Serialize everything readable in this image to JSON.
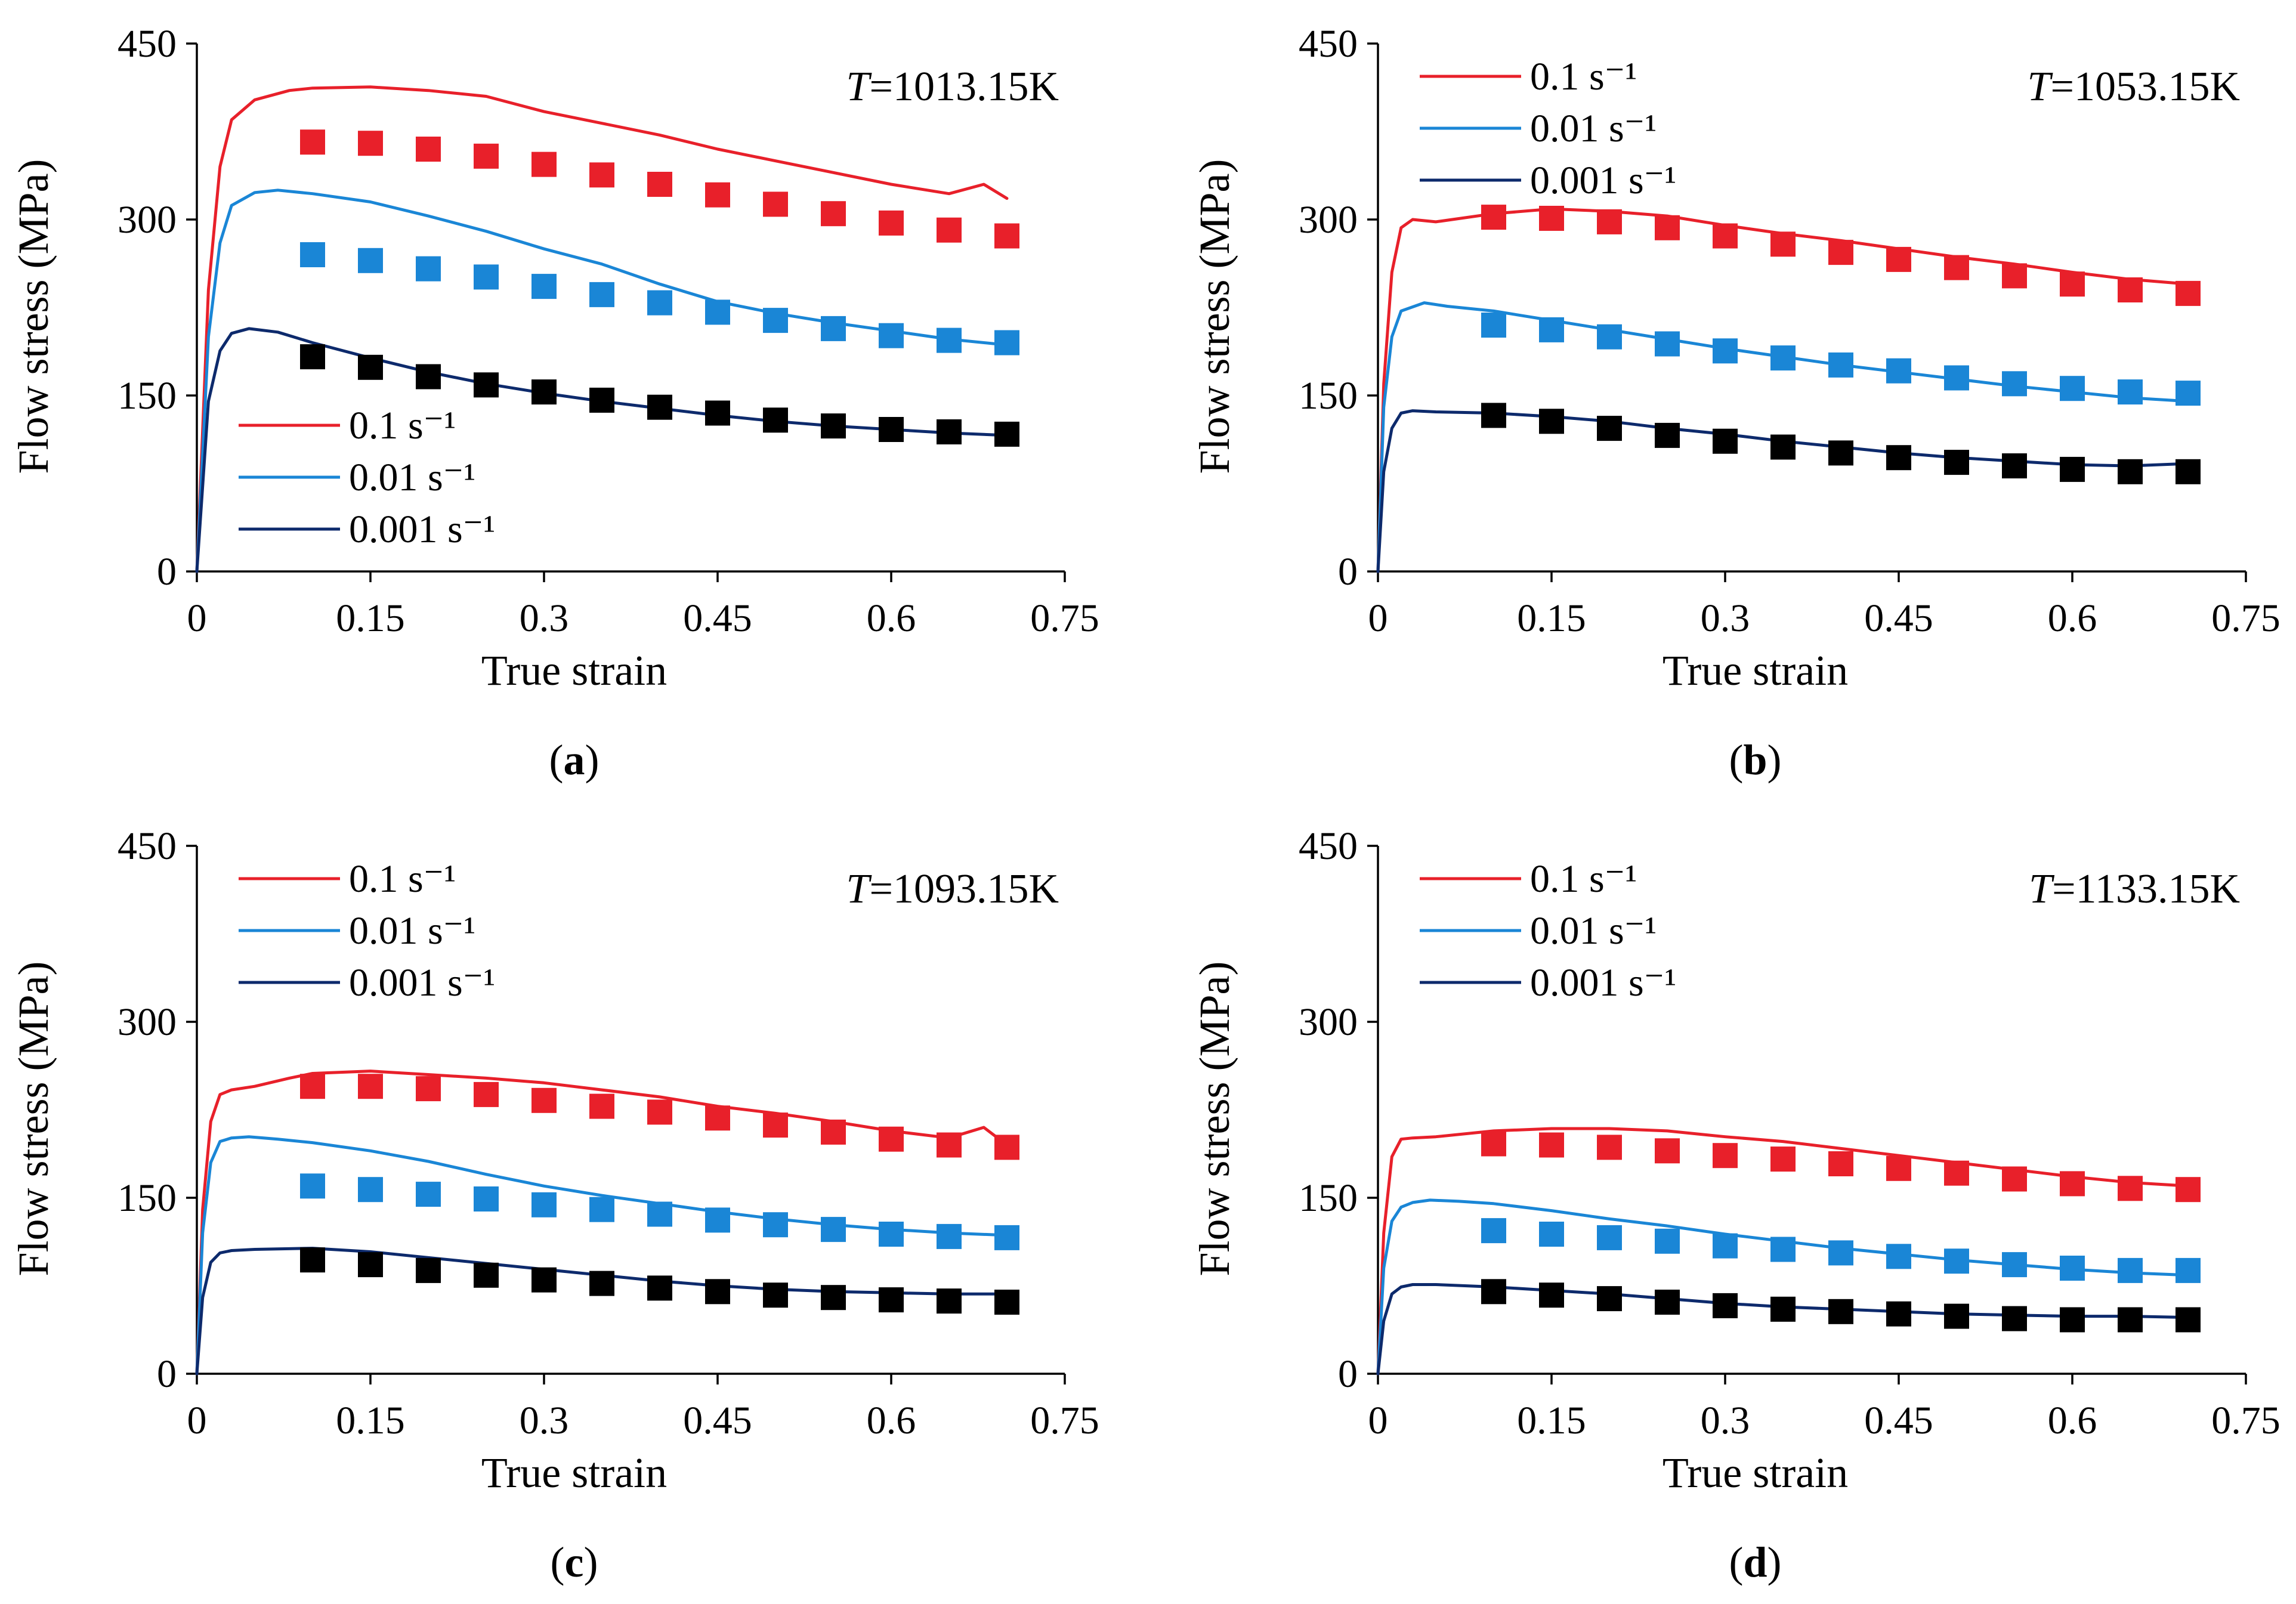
{
  "figure": {
    "colors": {
      "r01": "#e8202a",
      "r001": "#1a86d6",
      "r0001": "#0d2a6c",
      "marker_r01": "#e8202a",
      "marker_r001": "#1a86d6",
      "marker_r0001": "#000000"
    }
  },
  "chart_data": [
    {
      "type": "line",
      "panel_label": "a",
      "title": "T=1013.15K",
      "title_prefix": "T",
      "title_suffix": "=1013.15K",
      "xlabel": "True strain",
      "ylabel": "Flow stress (MPa)",
      "xlim": [
        0,
        0.75
      ],
      "ylim": [
        0,
        450
      ],
      "xticks": [
        0,
        0.15,
        0.3,
        0.45,
        0.6,
        0.75
      ],
      "xtick_labels": [
        "0",
        "0.15",
        "0.3",
        "0.45",
        "0.6",
        "0.75"
      ],
      "yticks": [
        0,
        150,
        300,
        450
      ],
      "ytick_labels": [
        "0",
        "150",
        "300",
        "450"
      ],
      "legend_position": "lower-left",
      "series": [
        {
          "name": "0.1 s⁻¹",
          "color_key": "r01",
          "x": [
            0,
            0.01,
            0.02,
            0.03,
            0.05,
            0.08,
            0.1,
            0.15,
            0.2,
            0.25,
            0.3,
            0.35,
            0.4,
            0.45,
            0.5,
            0.55,
            0.6,
            0.65,
            0.68,
            0.7
          ],
          "y": [
            0,
            240,
            345,
            385,
            402,
            410,
            412,
            413,
            410,
            405,
            392,
            382,
            372,
            360,
            350,
            340,
            330,
            322,
            330,
            318
          ]
        },
        {
          "name": "0.01 s⁻¹",
          "color_key": "r001",
          "x": [
            0,
            0.01,
            0.02,
            0.03,
            0.05,
            0.07,
            0.1,
            0.15,
            0.2,
            0.25,
            0.3,
            0.35,
            0.4,
            0.45,
            0.5,
            0.55,
            0.6,
            0.65,
            0.7
          ],
          "y": [
            0,
            200,
            280,
            312,
            323,
            325,
            322,
            315,
            303,
            290,
            275,
            262,
            245,
            230,
            220,
            212,
            205,
            198,
            193
          ]
        },
        {
          "name": "0.001 s⁻¹",
          "color_key": "r0001",
          "x": [
            0,
            0.01,
            0.02,
            0.03,
            0.045,
            0.07,
            0.1,
            0.15,
            0.2,
            0.25,
            0.3,
            0.35,
            0.4,
            0.45,
            0.5,
            0.55,
            0.6,
            0.65,
            0.7
          ],
          "y": [
            0,
            145,
            188,
            203,
            207,
            204,
            195,
            182,
            170,
            160,
            152,
            145,
            139,
            133,
            128,
            124,
            121,
            118,
            116
          ]
        }
      ],
      "markers": [
        {
          "color_key": "marker_r01",
          "x": [
            0.1,
            0.15,
            0.2,
            0.25,
            0.3,
            0.35,
            0.4,
            0.45,
            0.5,
            0.55,
            0.6,
            0.65,
            0.7
          ],
          "y": [
            366,
            365,
            360,
            354,
            347,
            338,
            330,
            321,
            313,
            305,
            297,
            291,
            286
          ]
        },
        {
          "color_key": "marker_r001",
          "x": [
            0.1,
            0.15,
            0.2,
            0.25,
            0.3,
            0.35,
            0.4,
            0.45,
            0.5,
            0.55,
            0.6,
            0.65,
            0.7
          ],
          "y": [
            270,
            265,
            258,
            251,
            243,
            236,
            229,
            221,
            214,
            207,
            201,
            197,
            195
          ]
        },
        {
          "color_key": "marker_r0001",
          "x": [
            0.1,
            0.15,
            0.2,
            0.25,
            0.3,
            0.35,
            0.4,
            0.45,
            0.5,
            0.55,
            0.6,
            0.65,
            0.7
          ],
          "y": [
            183,
            174,
            166,
            159,
            153,
            146,
            140,
            135,
            129,
            124,
            121,
            119,
            117
          ]
        }
      ]
    },
    {
      "type": "line",
      "panel_label": "b",
      "title": "T=1053.15K",
      "title_prefix": "T",
      "title_suffix": "=1053.15K",
      "xlabel": "True strain",
      "ylabel": "Flow stress (MPa)",
      "xlim": [
        0,
        0.75
      ],
      "ylim": [
        0,
        450
      ],
      "xticks": [
        0,
        0.15,
        0.3,
        0.45,
        0.6,
        0.75
      ],
      "xtick_labels": [
        "0",
        "0.15",
        "0.3",
        "0.45",
        "0.6",
        "0.75"
      ],
      "yticks": [
        0,
        150,
        300,
        450
      ],
      "ytick_labels": [
        "0",
        "150",
        "300",
        "450"
      ],
      "legend_position": "top-left",
      "series": [
        {
          "name": "0.1 s⁻¹",
          "color_key": "r01",
          "x": [
            0,
            0.005,
            0.012,
            0.02,
            0.03,
            0.05,
            0.1,
            0.15,
            0.2,
            0.25,
            0.3,
            0.35,
            0.4,
            0.45,
            0.5,
            0.55,
            0.6,
            0.65,
            0.7
          ],
          "y": [
            0,
            160,
            255,
            293,
            300,
            298,
            305,
            309,
            307,
            303,
            295,
            288,
            282,
            275,
            268,
            262,
            255,
            249,
            245
          ]
        },
        {
          "name": "0.01 s⁻¹",
          "color_key": "r001",
          "x": [
            0,
            0.005,
            0.012,
            0.02,
            0.04,
            0.06,
            0.1,
            0.15,
            0.2,
            0.25,
            0.3,
            0.35,
            0.4,
            0.45,
            0.5,
            0.55,
            0.6,
            0.65,
            0.7
          ],
          "y": [
            0,
            140,
            200,
            222,
            229,
            226,
            222,
            214,
            206,
            198,
            190,
            183,
            176,
            170,
            164,
            158,
            153,
            148,
            145
          ]
        },
        {
          "name": "0.001 s⁻¹",
          "color_key": "r0001",
          "x": [
            0,
            0.005,
            0.012,
            0.02,
            0.03,
            0.05,
            0.1,
            0.15,
            0.2,
            0.25,
            0.3,
            0.35,
            0.4,
            0.45,
            0.5,
            0.55,
            0.6,
            0.65,
            0.7
          ],
          "y": [
            0,
            85,
            122,
            135,
            137,
            136,
            135,
            132,
            128,
            122,
            117,
            111,
            106,
            101,
            97,
            94,
            91,
            90,
            92
          ]
        }
      ],
      "markers": [
        {
          "color_key": "marker_r01",
          "x": [
            0.1,
            0.15,
            0.2,
            0.25,
            0.3,
            0.35,
            0.4,
            0.45,
            0.5,
            0.55,
            0.6,
            0.65,
            0.7
          ],
          "y": [
            302,
            301,
            298,
            293,
            286,
            279,
            272,
            266,
            259,
            252,
            245,
            240,
            237
          ]
        },
        {
          "color_key": "marker_r001",
          "x": [
            0.1,
            0.15,
            0.2,
            0.25,
            0.3,
            0.35,
            0.4,
            0.45,
            0.5,
            0.55,
            0.6,
            0.65,
            0.7
          ],
          "y": [
            210,
            206,
            200,
            194,
            188,
            182,
            176,
            171,
            165,
            160,
            156,
            153,
            152
          ]
        },
        {
          "color_key": "marker_r0001",
          "x": [
            0.1,
            0.15,
            0.2,
            0.25,
            0.3,
            0.35,
            0.4,
            0.45,
            0.5,
            0.55,
            0.6,
            0.65,
            0.7
          ],
          "y": [
            133,
            128,
            122,
            116,
            111,
            106,
            101,
            97,
            93,
            90,
            87,
            85,
            85
          ]
        }
      ]
    },
    {
      "type": "line",
      "panel_label": "c",
      "title": "T=1093.15K",
      "title_prefix": "T",
      "title_suffix": "=1093.15K",
      "xlabel": "True strain",
      "ylabel": "Flow stress (MPa)",
      "xlim": [
        0,
        0.75
      ],
      "ylim": [
        0,
        450
      ],
      "xticks": [
        0,
        0.15,
        0.3,
        0.45,
        0.6,
        0.75
      ],
      "xtick_labels": [
        "0",
        "0.15",
        "0.3",
        "0.45",
        "0.6",
        "0.75"
      ],
      "yticks": [
        0,
        150,
        300,
        450
      ],
      "ytick_labels": [
        "0",
        "150",
        "300",
        "450"
      ],
      "legend_position": "top-left",
      "series": [
        {
          "name": "0.1 s⁻¹",
          "color_key": "r01",
          "x": [
            0,
            0.005,
            0.012,
            0.02,
            0.03,
            0.05,
            0.08,
            0.1,
            0.15,
            0.2,
            0.25,
            0.3,
            0.35,
            0.4,
            0.45,
            0.5,
            0.55,
            0.6,
            0.65,
            0.68,
            0.7
          ],
          "y": [
            0,
            140,
            215,
            238,
            242,
            245,
            252,
            256,
            258,
            255,
            252,
            248,
            242,
            236,
            228,
            222,
            215,
            207,
            201,
            210,
            195
          ]
        },
        {
          "name": "0.01 s⁻¹",
          "color_key": "r001",
          "x": [
            0,
            0.005,
            0.012,
            0.02,
            0.03,
            0.045,
            0.07,
            0.1,
            0.15,
            0.2,
            0.25,
            0.3,
            0.35,
            0.4,
            0.45,
            0.5,
            0.55,
            0.6,
            0.65,
            0.7
          ],
          "y": [
            0,
            120,
            180,
            198,
            201,
            202,
            200,
            197,
            190,
            181,
            170,
            160,
            152,
            145,
            138,
            132,
            127,
            123,
            120,
            118
          ]
        },
        {
          "name": "0.001 s⁻¹",
          "color_key": "r0001",
          "x": [
            0,
            0.005,
            0.012,
            0.02,
            0.03,
            0.05,
            0.1,
            0.15,
            0.2,
            0.25,
            0.3,
            0.35,
            0.4,
            0.45,
            0.5,
            0.55,
            0.6,
            0.65,
            0.7
          ],
          "y": [
            0,
            65,
            95,
            103,
            105,
            106,
            107,
            104,
            99,
            94,
            89,
            84,
            79,
            75,
            72,
            70,
            69,
            68,
            68
          ]
        }
      ],
      "markers": [
        {
          "color_key": "marker_r01",
          "x": [
            0.1,
            0.15,
            0.2,
            0.25,
            0.3,
            0.35,
            0.4,
            0.45,
            0.5,
            0.55,
            0.6,
            0.65,
            0.7
          ],
          "y": [
            245,
            245,
            243,
            238,
            233,
            228,
            223,
            218,
            212,
            206,
            200,
            195,
            193
          ]
        },
        {
          "color_key": "marker_r001",
          "x": [
            0.1,
            0.15,
            0.2,
            0.25,
            0.3,
            0.35,
            0.4,
            0.45,
            0.5,
            0.55,
            0.6,
            0.65,
            0.7
          ],
          "y": [
            160,
            157,
            153,
            149,
            144,
            140,
            136,
            131,
            127,
            123,
            119,
            117,
            116
          ]
        },
        {
          "color_key": "marker_r0001",
          "x": [
            0.1,
            0.15,
            0.2,
            0.25,
            0.3,
            0.35,
            0.4,
            0.45,
            0.5,
            0.55,
            0.6,
            0.65,
            0.7
          ],
          "y": [
            97,
            93,
            88,
            84,
            80,
            77,
            73,
            70,
            67,
            65,
            63,
            62,
            61
          ]
        }
      ]
    },
    {
      "type": "line",
      "panel_label": "d",
      "title": "T=1133.15K",
      "title_prefix": "T",
      "title_suffix": "=1133.15K",
      "xlabel": "True strain",
      "ylabel": "Flow stress (MPa)",
      "xlim": [
        0,
        0.75
      ],
      "ylim": [
        0,
        450
      ],
      "xticks": [
        0,
        0.15,
        0.3,
        0.45,
        0.6,
        0.75
      ],
      "xtick_labels": [
        "0",
        "0.15",
        "0.3",
        "0.45",
        "0.6",
        "0.75"
      ],
      "yticks": [
        0,
        150,
        300,
        450
      ],
      "ytick_labels": [
        "0",
        "150",
        "300",
        "450"
      ],
      "legend_position": "top-left",
      "series": [
        {
          "name": "0.1 s⁻¹",
          "color_key": "r01",
          "x": [
            0,
            0.005,
            0.012,
            0.02,
            0.03,
            0.05,
            0.1,
            0.15,
            0.2,
            0.25,
            0.3,
            0.35,
            0.4,
            0.45,
            0.5,
            0.55,
            0.6,
            0.65,
            0.7
          ],
          "y": [
            0,
            120,
            185,
            200,
            201,
            202,
            207,
            209,
            209,
            207,
            202,
            198,
            192,
            186,
            180,
            174,
            168,
            163,
            160
          ]
        },
        {
          "name": "0.01 s⁻¹",
          "color_key": "r001",
          "x": [
            0,
            0.005,
            0.012,
            0.02,
            0.03,
            0.045,
            0.07,
            0.1,
            0.15,
            0.2,
            0.25,
            0.3,
            0.35,
            0.4,
            0.45,
            0.5,
            0.55,
            0.6,
            0.65,
            0.7
          ],
          "y": [
            0,
            90,
            130,
            142,
            146,
            148,
            147,
            145,
            139,
            132,
            126,
            119,
            113,
            107,
            102,
            97,
            93,
            89,
            86,
            84
          ]
        },
        {
          "name": "0.001 s⁻¹",
          "color_key": "r0001",
          "x": [
            0,
            0.005,
            0.012,
            0.02,
            0.03,
            0.05,
            0.1,
            0.15,
            0.2,
            0.25,
            0.3,
            0.35,
            0.4,
            0.45,
            0.5,
            0.55,
            0.6,
            0.65,
            0.7
          ],
          "y": [
            0,
            45,
            68,
            74,
            76,
            76,
            74,
            71,
            68,
            64,
            60,
            57,
            55,
            53,
            51,
            50,
            49,
            49,
            48
          ]
        }
      ],
      "markers": [
        {
          "color_key": "marker_r01",
          "x": [
            0.1,
            0.15,
            0.2,
            0.25,
            0.3,
            0.35,
            0.4,
            0.45,
            0.5,
            0.55,
            0.6,
            0.65,
            0.7
          ],
          "y": [
            196,
            195,
            193,
            190,
            186,
            183,
            179,
            175,
            171,
            166,
            162,
            158,
            157
          ]
        },
        {
          "color_key": "marker_r001",
          "x": [
            0.1,
            0.15,
            0.2,
            0.25,
            0.3,
            0.35,
            0.4,
            0.45,
            0.5,
            0.55,
            0.6,
            0.65,
            0.7
          ],
          "y": [
            122,
            119,
            116,
            113,
            109,
            106,
            103,
            100,
            96,
            93,
            90,
            88,
            88
          ]
        },
        {
          "color_key": "marker_r0001",
          "x": [
            0.1,
            0.15,
            0.2,
            0.25,
            0.3,
            0.35,
            0.4,
            0.45,
            0.5,
            0.55,
            0.6,
            0.65,
            0.7
          ],
          "y": [
            70,
            67,
            64,
            61,
            58,
            55,
            53,
            51,
            49,
            47,
            46,
            46,
            46
          ]
        }
      ]
    }
  ]
}
